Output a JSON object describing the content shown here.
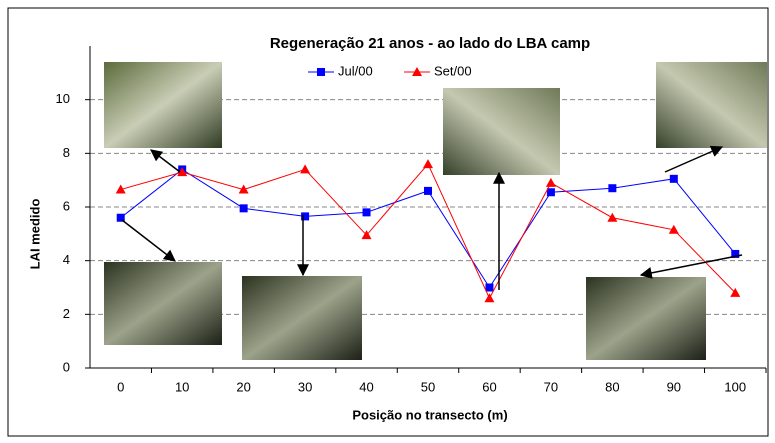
{
  "chart_data": {
    "type": "line",
    "title": "Regeneração 21 anos - ao lado do LBA camp",
    "x_label": "Posição no transecto (m)",
    "y_label": "LAI medido",
    "categories": [
      "0",
      "10",
      "20",
      "30",
      "40",
      "50",
      "60",
      "70",
      "80",
      "90",
      "100"
    ],
    "series": [
      {
        "name": "Jul/00",
        "color": "#0000ff",
        "marker": "square",
        "values": [
          5.6,
          7.4,
          5.95,
          5.65,
          5.8,
          6.6,
          3.0,
          6.55,
          6.7,
          7.05,
          4.25
        ]
      },
      {
        "name": "Set/00",
        "color": "#ff0000",
        "marker": "triangle",
        "values": [
          6.65,
          7.3,
          6.65,
          7.4,
          4.95,
          7.6,
          2.6,
          6.9,
          5.6,
          5.15,
          2.8
        ]
      }
    ],
    "ylim": [
      0,
      12
    ],
    "yticks": [
      0,
      2,
      4,
      6,
      8,
      10
    ],
    "grid": true
  }
}
